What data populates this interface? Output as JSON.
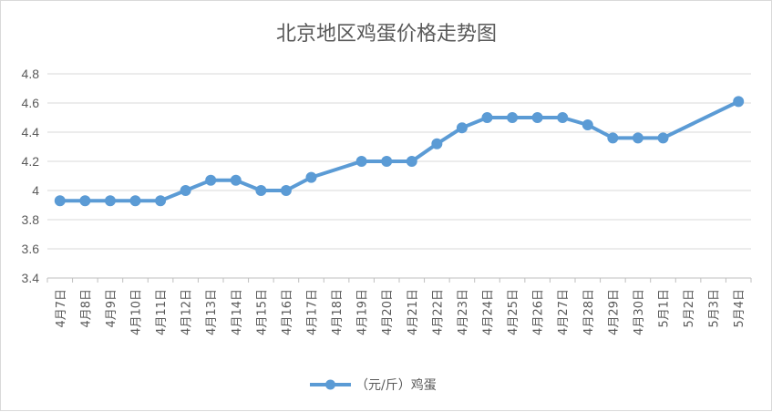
{
  "chart_data": {
    "type": "line",
    "title": "北京地区鸡蛋价格走势图",
    "categories": [
      "4月7日",
      "4月8日",
      "4月9日",
      "4月10日",
      "4月11日",
      "4月12日",
      "4月13日",
      "4月14日",
      "4月15日",
      "4月16日",
      "4月17日",
      "4月18日",
      "4月19日",
      "4月20日",
      "4月21日",
      "4月22日",
      "4月23日",
      "4月24日",
      "4月25日",
      "4月26日",
      "4月27日",
      "4月28日",
      "4月29日",
      "4月30日",
      "5月1日",
      "5月2日",
      "5月3日",
      "5月4日"
    ],
    "series": [
      {
        "name": "（元/斤）鸡蛋",
        "color": "#5b9bd5",
        "values": [
          3.93,
          3.93,
          3.93,
          3.93,
          3.93,
          4.0,
          4.07,
          4.07,
          4.0,
          4.0,
          4.09,
          null,
          4.2,
          4.2,
          4.2,
          4.32,
          4.43,
          4.5,
          4.5,
          4.5,
          4.5,
          4.45,
          4.36,
          4.36,
          4.36,
          null,
          null,
          4.61
        ]
      }
    ],
    "ylim": [
      3.4,
      4.8
    ],
    "yticks": [
      3.4,
      3.6,
      3.8,
      4,
      4.2,
      4.4,
      4.6,
      4.8
    ],
    "ytick_labels": [
      "3.4",
      "3.6",
      "3.8",
      "4",
      "4.2",
      "4.4",
      "4.6",
      "4.8"
    ],
    "grid": true,
    "legend_position": "bottom"
  }
}
